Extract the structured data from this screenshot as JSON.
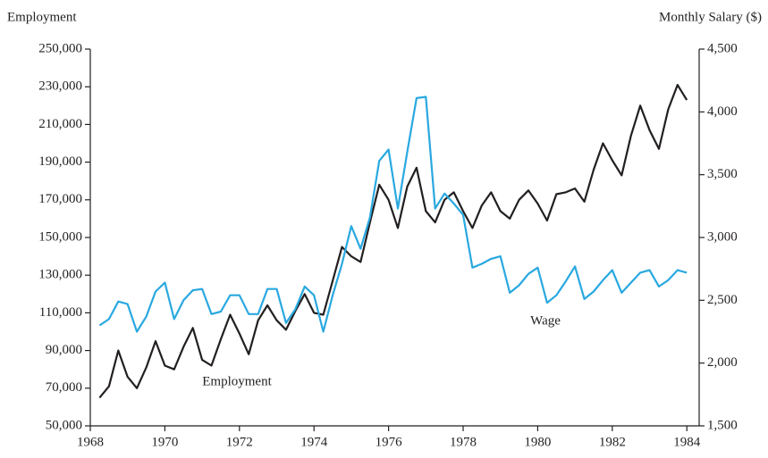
{
  "chart_data": {
    "type": "line",
    "y_label": "Employment",
    "y2_label": "Monthly Salary ($)",
    "annotations": [
      "Wage",
      "Employment"
    ],
    "x": [
      1968.25,
      1968.5,
      1968.75,
      1969,
      1969.25,
      1969.5,
      1969.75,
      1970,
      1970.25,
      1970.5,
      1970.75,
      1971,
      1971.25,
      1971.5,
      1971.75,
      1972,
      1972.25,
      1972.5,
      1972.75,
      1973,
      1973.25,
      1973.5,
      1973.75,
      1974,
      1974.25,
      1974.5,
      1974.75,
      1975,
      1975.25,
      1975.5,
      1975.75,
      1976,
      1976.25,
      1976.5,
      1976.75,
      1977,
      1977.25,
      1977.5,
      1977.75,
      1978,
      1978.25,
      1978.5,
      1978.75,
      1979,
      1979.25,
      1979.5,
      1979.75,
      1980,
      1980.25,
      1980.5,
      1980.75,
      1981,
      1981.25,
      1981.5,
      1981.75,
      1982,
      1982.25,
      1982.5,
      1982.75,
      1983,
      1983.25,
      1983.5,
      1983.75,
      1984
    ],
    "series": [
      {
        "name": "Employment",
        "color": "#231f20",
        "axis": "y",
        "values": [
          65000,
          71000,
          90000,
          76000,
          70000,
          81000,
          95000,
          82000,
          80000,
          92000,
          102000,
          85000,
          82000,
          96000,
          109000,
          99000,
          88000,
          106000,
          114000,
          106000,
          101000,
          111000,
          120000,
          110000,
          109000,
          127000,
          145000,
          140000,
          137000,
          158000,
          178000,
          170000,
          155000,
          177000,
          187000,
          164000,
          158000,
          170000,
          174000,
          164000,
          155000,
          167000,
          174000,
          164000,
          160000,
          170000,
          175000,
          168000,
          159000,
          173000,
          174000,
          176000,
          169000,
          186000,
          200000,
          191000,
          183000,
          204000,
          220000,
          207000,
          197000,
          218000,
          231000,
          223000
        ]
      },
      {
        "name": "Wage",
        "color": "#29a8e0",
        "axis": "y2",
        "values": [
          2300,
          2350,
          2490,
          2470,
          2250,
          2370,
          2570,
          2640,
          2350,
          2500,
          2580,
          2590,
          2390,
          2410,
          2540,
          2540,
          2390,
          2390,
          2590,
          2590,
          2320,
          2430,
          2610,
          2540,
          2250,
          2540,
          2790,
          3090,
          2910,
          3160,
          3610,
          3700,
          3230,
          3680,
          4110,
          4120,
          3230,
          3350,
          3270,
          3180,
          2760,
          2790,
          2830,
          2850,
          2560,
          2620,
          2710,
          2760,
          2480,
          2540,
          2650,
          2770,
          2510,
          2570,
          2660,
          2740,
          2560,
          2640,
          2720,
          2740,
          2610,
          2660,
          2740,
          2720
        ]
      }
    ],
    "xlim": [
      1968,
      1984.33
    ],
    "xticks": [
      1968,
      1970,
      1972,
      1974,
      1976,
      1978,
      1980,
      1982,
      1984
    ],
    "ylim": [
      50000,
      250000
    ],
    "yticks": [
      {
        "value": 50000,
        "label": "50,000"
      },
      {
        "value": 70000,
        "label": "70,000"
      },
      {
        "value": 90000,
        "label": "90,000"
      },
      {
        "value": 110000,
        "label": "110,000"
      },
      {
        "value": 130000,
        "label": "130,000"
      },
      {
        "value": 150000,
        "label": "150,000"
      },
      {
        "value": 170000,
        "label": "170,000"
      },
      {
        "value": 190000,
        "label": "190,000"
      },
      {
        "value": 210000,
        "label": "210,000"
      },
      {
        "value": 230000,
        "label": "230,000"
      },
      {
        "value": 250000,
        "label": "250,000"
      }
    ],
    "y2lim": [
      1500,
      4500
    ],
    "y2ticks": [
      {
        "value": 1500,
        "label": "1,500"
      },
      {
        "value": 2000,
        "label": "2,000"
      },
      {
        "value": 2500,
        "label": "2,500"
      },
      {
        "value": 3000,
        "label": "3,000"
      },
      {
        "value": 3500,
        "label": "3,500"
      },
      {
        "value": 4000,
        "label": "4,000"
      },
      {
        "value": 4500,
        "label": "4,500"
      }
    ],
    "grid": false
  }
}
